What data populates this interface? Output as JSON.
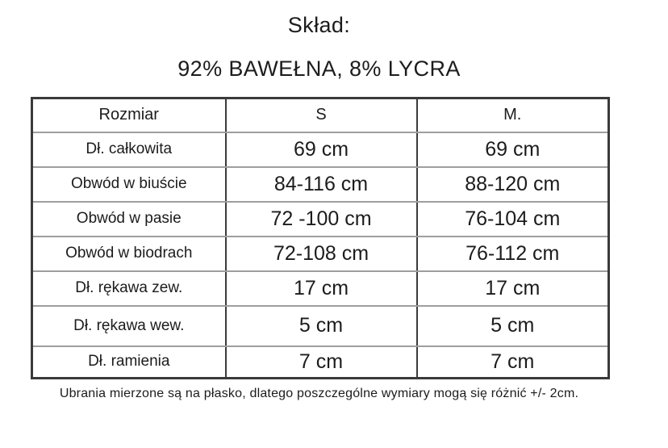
{
  "header": {
    "title": "Skład:",
    "composition": "92% BAWEŁNA, 8% LYCRA"
  },
  "size_table": {
    "columns": [
      "Rozmiar",
      "S",
      "M."
    ],
    "rows": [
      {
        "label": "Dł. całkowita",
        "s": "69 cm",
        "m": "69 cm"
      },
      {
        "label": "Obwód w biuście",
        "s": "84-116 cm",
        "m": "88-120 cm"
      },
      {
        "label": "Obwód w pasie",
        "s": "72 -100 cm",
        "m": "76-104 cm"
      },
      {
        "label": "Obwód w biodrach",
        "s": "72-108 cm",
        "m": "76-112 cm"
      },
      {
        "label": "Dł. rękawa zew.",
        "s": "17 cm",
        "m": "17 cm"
      },
      {
        "label": "Dł. rękawa wew.",
        "s": "5 cm",
        "m": "5 cm"
      },
      {
        "label": "Dł. ramienia",
        "s": "7 cm",
        "m": "7 cm"
      }
    ]
  },
  "footnote": "Ubrania mierzone są na płasko, dlatego poszczególne wymiary mogą się różnić +/- 2cm.",
  "colors": {
    "background": "#ffffff",
    "text": "#1c1c1c",
    "grid_dark": "#3a3a3a",
    "grid_light": "#9e9e9e"
  }
}
